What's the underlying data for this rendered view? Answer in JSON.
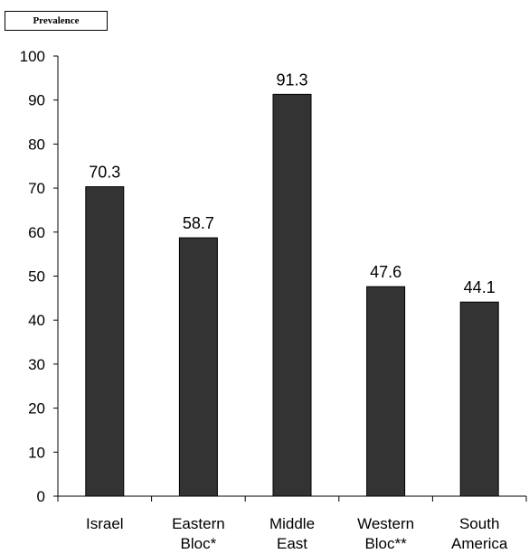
{
  "chart_data": {
    "type": "bar",
    "ylabel": "Prevalence",
    "xlabel": "",
    "title": "",
    "categories": [
      [
        "Israel"
      ],
      [
        "Eastern",
        "Bloc*"
      ],
      [
        "Middle",
        "East"
      ],
      [
        "Western",
        "Bloc**"
      ],
      [
        "South",
        "America"
      ]
    ],
    "values": [
      70.3,
      58.7,
      91.3,
      47.6,
      44.1
    ],
    "data_labels": [
      "70.3",
      "58.7",
      "91.3",
      "47.6",
      "44.1"
    ],
    "ylim": [
      0,
      100
    ],
    "yticks": [
      0,
      10,
      20,
      30,
      40,
      50,
      60,
      70,
      80,
      90,
      100
    ],
    "grid": false,
    "bar_color": "#333333"
  }
}
